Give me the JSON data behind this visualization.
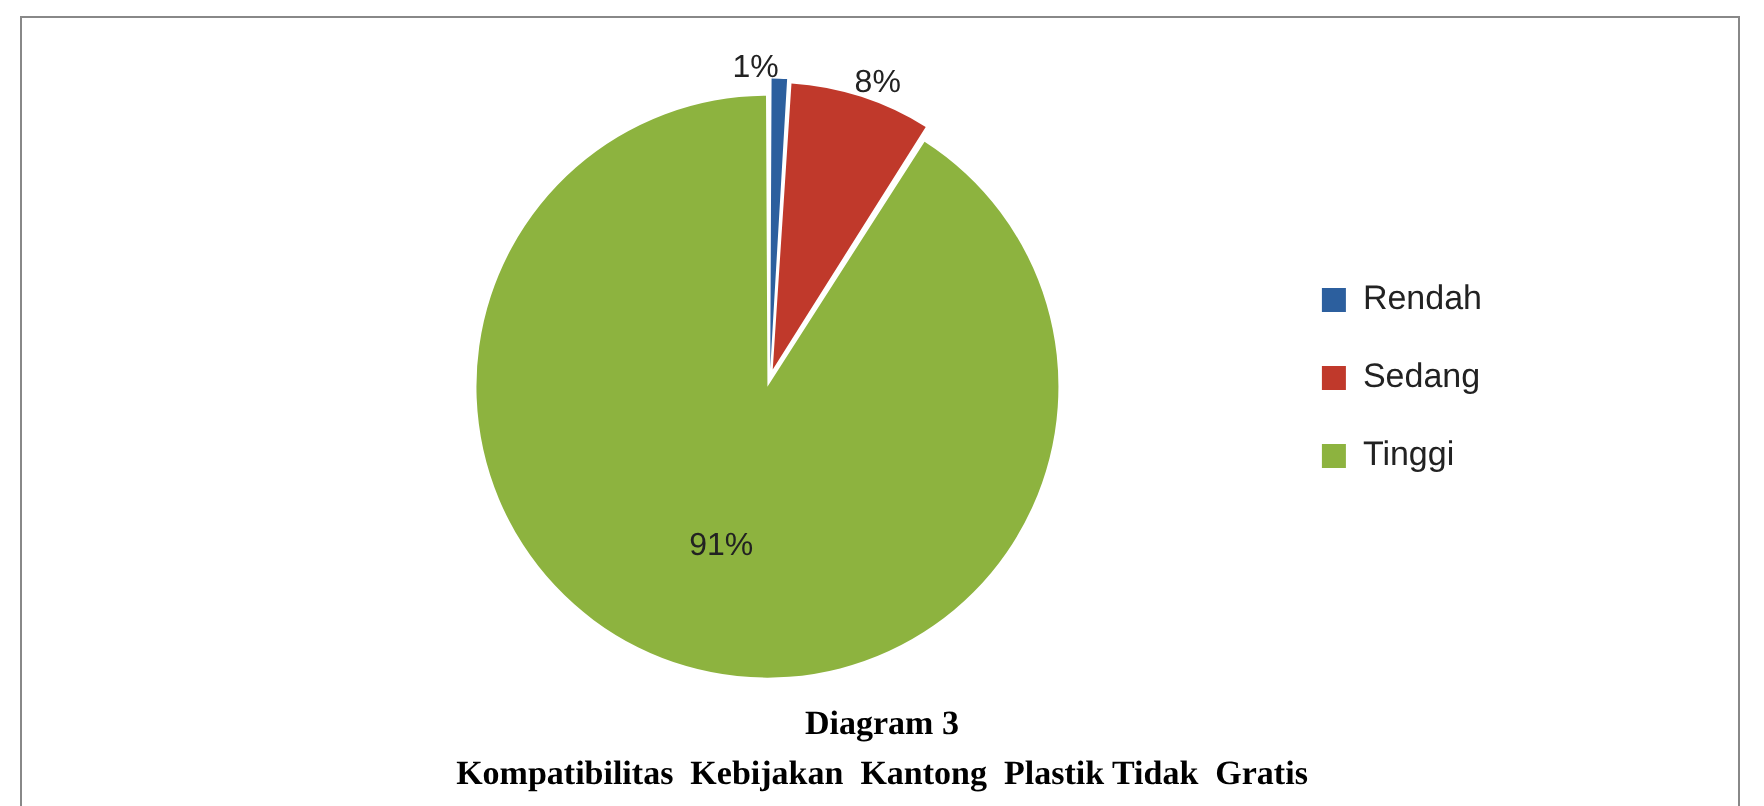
{
  "chart_data": {
    "type": "pie",
    "title": "Diagram 3",
    "subtitle": "Kompatibilitas  Kebijakan  Kantong  Plastik Tidak  Gratis",
    "categories": [
      "Rendah",
      "Sedang",
      "Tinggi"
    ],
    "values": [
      1,
      8,
      91
    ],
    "value_labels": [
      "1%",
      "8%",
      "91%"
    ],
    "colors": [
      "#2c5f9e",
      "#c0392b",
      "#8db33f"
    ],
    "legend": "right"
  }
}
